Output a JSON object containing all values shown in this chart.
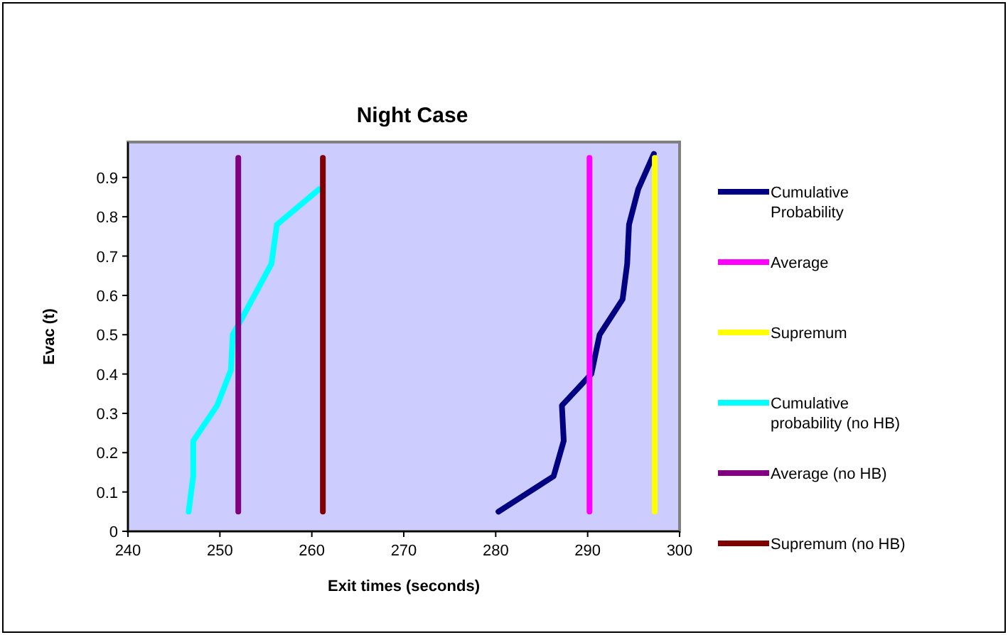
{
  "chart_data": {
    "type": "line",
    "title": "Night Case",
    "xlabel": "Exit times (seconds)",
    "ylabel": "Evac (t)",
    "xlim": [
      240,
      300
    ],
    "xticks": [
      240,
      250,
      260,
      270,
      280,
      290,
      300
    ],
    "ylim": [
      0,
      0.99
    ],
    "yticks": [
      0,
      0.1,
      0.2,
      0.3,
      0.4,
      0.5,
      0.6,
      0.7,
      0.8,
      0.9
    ],
    "grid": false,
    "legend": "right",
    "marker": "none",
    "line_style": "solid",
    "series": [
      {
        "name": "Cumulative Probability",
        "color": "#000080",
        "x": [
          280.3,
          286.3,
          287.4,
          287.2,
          290.4,
          291.3,
          293.8,
          294.3,
          294.5,
          295.5,
          297.2
        ],
        "values": [
          0.05,
          0.14,
          0.23,
          0.32,
          0.4,
          0.5,
          0.59,
          0.68,
          0.78,
          0.87,
          0.96
        ]
      },
      {
        "name": "Average",
        "color": "#ff00ff",
        "x": [
          290.2,
          290.2
        ],
        "values": [
          0.05,
          0.95
        ]
      },
      {
        "name": "Supremum",
        "color": "#ffff00",
        "x": [
          297.3,
          297.3
        ],
        "values": [
          0.05,
          0.95
        ]
      },
      {
        "name": "Cumulative probability (no HB)",
        "color": "#00ffff",
        "x": [
          246.6,
          247.1,
          247.1,
          249.7,
          251.2,
          251.4,
          252.6,
          255.6,
          256.2,
          260.8
        ],
        "values": [
          0.05,
          0.14,
          0.23,
          0.32,
          0.41,
          0.5,
          0.55,
          0.68,
          0.78,
          0.87
        ]
      },
      {
        "name": "Average (no HB)",
        "color": "#800080",
        "x": [
          252,
          252
        ],
        "values": [
          0.05,
          0.95
        ]
      },
      {
        "name": "Supremum (no HB)",
        "color": "#800000",
        "x": [
          261.2,
          261.2
        ],
        "values": [
          0.05,
          0.95
        ]
      }
    ]
  }
}
